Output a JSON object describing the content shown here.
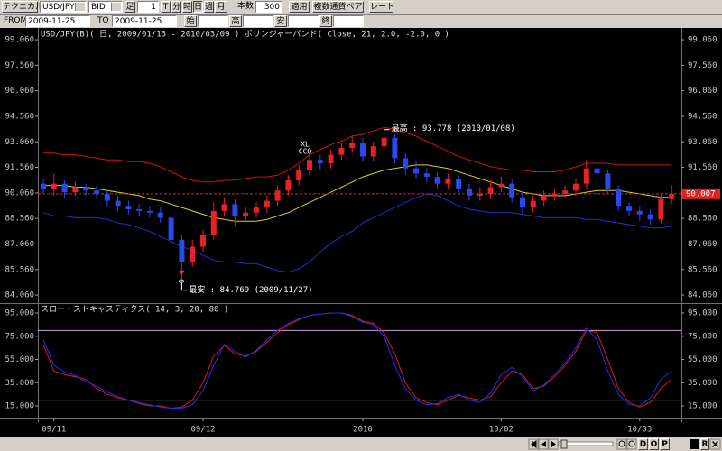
{
  "toolbar": {
    "row1": [
      "テクニカル",
      "USD/JPY",
      "BID",
      "足",
      "1",
      "T",
      "分",
      "時",
      "日",
      "週",
      "月",
      "本数",
      "300",
      "適用",
      "複数通貨ペア",
      "レート"
    ],
    "row2": [
      "FROM",
      "2009-11-25",
      "TO",
      "2009-11-25",
      "始",
      "高",
      "安",
      "終"
    ]
  },
  "statusbar": {
    "buttons": [
      "D",
      "O",
      "P",
      "R"
    ]
  },
  "chart_data": [
    {
      "type": "candlestick",
      "title": "USD/JPY(B)( 日, 2009/01/13 - 2010/03/09 )   ボリンジャーバンド( Close, 21, 2.0, -2.0, 0 )",
      "ylim": [
        83.64,
        99.7
      ],
      "yticks": [
        {
          "value": 99.06,
          "label": "99.060"
        },
        {
          "value": 97.56,
          "label": "97.560"
        },
        {
          "value": 96.06,
          "label": "96.060"
        },
        {
          "value": 94.56,
          "label": "94.560"
        },
        {
          "value": 93.06,
          "label": "93.060"
        },
        {
          "value": 91.56,
          "label": "91.560"
        },
        {
          "value": 90.06,
          "label": "90.060"
        },
        {
          "value": 88.56,
          "label": "88.560"
        },
        {
          "value": 87.06,
          "label": "87.060"
        },
        {
          "value": 85.56,
          "label": "85.560"
        },
        {
          "value": 84.06,
          "label": "84.060"
        }
      ],
      "up_color": "#e8202a",
      "down_color": "#2848f0",
      "open": [
        90.6,
        90.3,
        90.6,
        90.1,
        90.4,
        90.2,
        90.0,
        89.6,
        89.3,
        89.1,
        89.0,
        88.9,
        88.6,
        87.3,
        86.0,
        86.9,
        87.6,
        89.0,
        89.4,
        88.7,
        88.9,
        89.2,
        89.6,
        90.2,
        90.8,
        91.4,
        92.0,
        91.8,
        92.3,
        92.7,
        93.0,
        92.2,
        92.8,
        93.3,
        92.1,
        91.5,
        91.2,
        91.0,
        90.6,
        90.9,
        90.3,
        89.9,
        90.0,
        90.4,
        90.6,
        89.8,
        89.2,
        89.6,
        89.9,
        90.0,
        90.2,
        90.6,
        91.5,
        91.2,
        90.3,
        89.3,
        89.0,
        88.8,
        88.5,
        89.7
      ],
      "high": [
        90.9,
        91.2,
        90.8,
        90.7,
        90.6,
        90.5,
        90.3,
        89.9,
        89.6,
        89.4,
        89.3,
        89.2,
        88.9,
        87.6,
        87.3,
        87.9,
        89.5,
        89.8,
        89.7,
        89.2,
        89.5,
        89.9,
        90.5,
        91.1,
        91.7,
        92.4,
        92.3,
        92.6,
        93.0,
        93.4,
        93.3,
        93.1,
        93.778,
        93.5,
        92.4,
        91.9,
        91.5,
        91.3,
        91.2,
        91.1,
        90.6,
        90.4,
        90.8,
        91.0,
        90.9,
        90.1,
        89.9,
        90.2,
        90.3,
        90.5,
        90.9,
        92.0,
        91.8,
        91.4,
        90.5,
        89.5,
        89.3,
        89.1,
        90.0,
        90.5
      ],
      "low": [
        90.0,
        89.9,
        89.8,
        89.9,
        89.9,
        89.7,
        89.3,
        89.0,
        88.8,
        88.7,
        88.6,
        88.3,
        87.0,
        84.769,
        85.7,
        86.6,
        87.3,
        88.7,
        88.1,
        88.4,
        88.6,
        88.9,
        89.3,
        89.9,
        90.5,
        91.1,
        91.4,
        91.5,
        92.0,
        92.4,
        91.9,
        91.9,
        92.5,
        91.8,
        91.1,
        90.9,
        90.7,
        90.3,
        90.3,
        90.0,
        89.6,
        89.6,
        89.7,
        90.1,
        89.5,
        88.8,
        88.9,
        89.3,
        89.6,
        89.8,
        89.9,
        90.3,
        90.9,
        90.0,
        89.0,
        88.7,
        88.4,
        88.2,
        88.3,
        89.4
      ],
      "close": [
        90.3,
        90.6,
        90.1,
        90.4,
        90.2,
        90.0,
        89.6,
        89.3,
        89.1,
        89.0,
        88.9,
        88.6,
        87.3,
        86.0,
        86.9,
        87.6,
        89.0,
        89.4,
        88.7,
        88.9,
        89.2,
        89.6,
        90.2,
        90.8,
        91.4,
        92.0,
        91.8,
        92.3,
        92.7,
        93.0,
        92.2,
        92.8,
        93.3,
        92.1,
        91.5,
        91.2,
        91.0,
        90.6,
        90.9,
        90.3,
        89.9,
        90.0,
        90.4,
        90.6,
        89.8,
        89.2,
        89.6,
        89.9,
        90.0,
        90.2,
        90.6,
        91.5,
        91.2,
        90.3,
        89.3,
        89.0,
        88.8,
        88.5,
        89.7,
        90.0
      ],
      "bands": [
        {
          "color": "#d01010",
          "values": [
            92.4,
            92.4,
            92.3,
            92.3,
            92.2,
            92.1,
            92.0,
            92.0,
            91.9,
            91.9,
            91.8,
            91.6,
            91.3,
            91.0,
            90.8,
            90.7,
            90.7,
            90.8,
            90.8,
            90.9,
            91.0,
            91.0,
            91.1,
            91.4,
            91.8,
            92.3,
            92.6,
            92.9,
            93.1,
            93.4,
            93.5,
            93.7,
            93.9,
            93.8,
            93.6,
            93.4,
            93.1,
            92.8,
            92.5,
            92.2,
            92.0,
            91.8,
            91.6,
            91.5,
            91.4,
            91.4,
            91.3,
            91.3,
            91.3,
            91.4,
            91.6,
            91.8,
            91.8,
            91.8,
            91.7,
            91.7,
            91.7,
            91.7,
            91.7,
            91.7
          ]
        },
        {
          "color": "#d8d020",
          "values": [
            90.5,
            90.5,
            90.5,
            90.4,
            90.4,
            90.3,
            90.2,
            90.1,
            90.0,
            89.9,
            89.7,
            89.6,
            89.4,
            89.2,
            89.0,
            88.8,
            88.6,
            88.5,
            88.4,
            88.4,
            88.4,
            88.5,
            88.7,
            88.9,
            89.2,
            89.5,
            89.8,
            90.1,
            90.4,
            90.7,
            91.0,
            91.2,
            91.4,
            91.5,
            91.6,
            91.7,
            91.7,
            91.6,
            91.5,
            91.3,
            91.1,
            90.9,
            90.7,
            90.5,
            90.3,
            90.1,
            90.0,
            89.9,
            89.9,
            89.9,
            90.0,
            90.1,
            90.2,
            90.2,
            90.2,
            90.1,
            90.0,
            89.9,
            89.8,
            89.8
          ]
        },
        {
          "color": "#2030d0",
          "values": [
            88.9,
            88.7,
            88.7,
            88.6,
            88.6,
            88.6,
            88.5,
            88.3,
            88.2,
            88.0,
            87.8,
            87.5,
            87.2,
            86.9,
            86.7,
            86.4,
            86.1,
            86.0,
            86.0,
            85.9,
            85.9,
            85.7,
            85.5,
            85.4,
            85.6,
            86.0,
            86.6,
            87.1,
            87.5,
            87.8,
            88.3,
            88.6,
            88.9,
            89.2,
            89.5,
            89.8,
            90.0,
            89.9,
            89.6,
            89.3,
            89.1,
            89.0,
            88.9,
            88.9,
            88.9,
            88.8,
            88.7,
            88.6,
            88.6,
            88.6,
            88.6,
            88.5,
            88.5,
            88.4,
            88.3,
            88.2,
            88.1,
            88.0,
            88.0,
            88.1
          ]
        }
      ],
      "last_price": 90.007,
      "last_price_color": "#e02020",
      "annotations": [
        "最高 : 93.778 (2010/01/08)",
        "最安 : 84.769 (2009/11/27)",
        "O",
        "XL",
        "CCO"
      ]
    },
    {
      "type": "line",
      "title": "スロー・ストキャスティクス( 14, 3, 20, 80 )",
      "ylim": [
        5.7,
        102
      ],
      "yticks": [
        {
          "value": 95,
          "label": "95.000"
        },
        {
          "value": 75,
          "label": "75.000"
        },
        {
          "value": 55,
          "label": "55.000"
        },
        {
          "value": 35,
          "label": "35.000"
        },
        {
          "value": 15,
          "label": "15.000"
        }
      ],
      "levels": [
        {
          "value": 80,
          "color": "#d8a0e0"
        },
        {
          "value": 20,
          "color": "#a0b8f0"
        }
      ],
      "categories": [
        null,
        "09/11",
        null,
        null,
        null,
        null,
        null,
        null,
        null,
        null,
        null,
        null,
        null,
        null,
        null,
        "09/12",
        null,
        null,
        null,
        null,
        null,
        null,
        null,
        null,
        null,
        null,
        null,
        null,
        null,
        null,
        "2010",
        null,
        null,
        null,
        null,
        null,
        null,
        null,
        null,
        null,
        null,
        null,
        null,
        "10/02",
        null,
        null,
        null,
        null,
        null,
        null,
        null,
        null,
        null,
        null,
        null,
        null,
        "10/03",
        null,
        null,
        null
      ],
      "series": [
        {
          "color": "#e01818",
          "values": [
            68,
            45,
            42,
            40,
            38,
            30,
            25,
            22,
            20,
            17,
            15,
            15,
            13,
            14,
            20,
            35,
            58,
            67,
            60,
            58,
            62,
            70,
            78,
            85,
            89,
            93,
            94,
            95,
            95,
            93,
            88,
            86,
            78,
            60,
            35,
            22,
            18,
            16,
            20,
            24,
            22,
            20,
            23,
            35,
            45,
            42,
            30,
            32,
            40,
            50,
            62,
            80,
            78,
            55,
            30,
            18,
            14,
            18,
            30,
            38
          ]
        },
        {
          "color": "#2030e8",
          "values": [
            72,
            50,
            44,
            41,
            36,
            32,
            27,
            23,
            20,
            18,
            16,
            14,
            13,
            13,
            16,
            28,
            50,
            68,
            62,
            57,
            63,
            72,
            80,
            86,
            90,
            93,
            94,
            95,
            95,
            92,
            87,
            85,
            75,
            50,
            30,
            20,
            16,
            17,
            22,
            25,
            20,
            18,
            26,
            42,
            48,
            40,
            28,
            33,
            42,
            52,
            65,
            82,
            72,
            45,
            25,
            16,
            15,
            22,
            38,
            45
          ]
        }
      ]
    }
  ]
}
